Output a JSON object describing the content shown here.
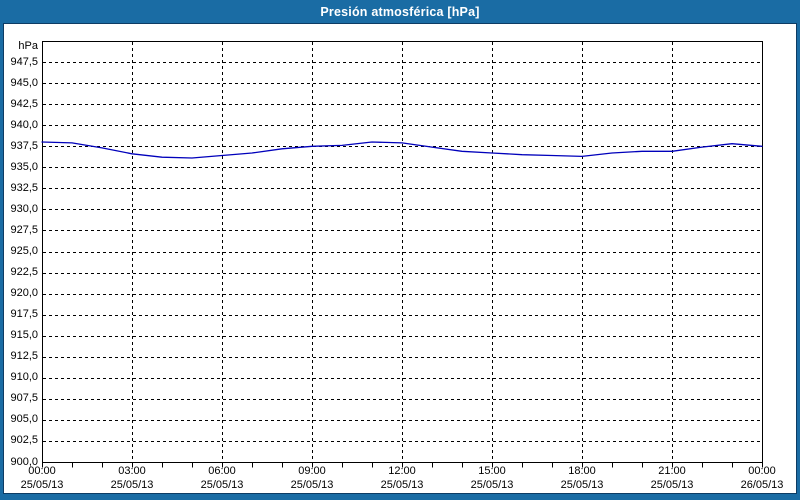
{
  "window": {
    "title": "Presión atmosférica [hPa]"
  },
  "colors": {
    "frame": "#1A6CA4",
    "frame_border": "#0D3C64",
    "titlebar_text": "#FFFFFF",
    "panel_bg": "#FFFFFF",
    "grid": "#000000",
    "axis": "#000000",
    "text": "#000000",
    "line": "#0000BB"
  },
  "chart_data": {
    "type": "line",
    "title": "Presión atmosférica [hPa]",
    "unit": "hPa",
    "ylim": [
      900,
      950
    ],
    "ytick_step": 2.5,
    "ytick_labels": [
      "947,5",
      "945,0",
      "942,5",
      "940,0",
      "937,5",
      "935,0",
      "932,5",
      "930,0",
      "927,5",
      "925,0",
      "922,5",
      "920,0",
      "917,5",
      "915,0",
      "912,5",
      "910,0",
      "907,5",
      "905,0",
      "902,5",
      "900,0"
    ],
    "xlim_hours": [
      0,
      24
    ],
    "x_major_step_hours": 3,
    "x_minor_step_hours": 1,
    "xticks": [
      {
        "time": "00:00",
        "date": "25/05/13"
      },
      {
        "time": "03:00",
        "date": "25/05/13"
      },
      {
        "time": "06:00",
        "date": "25/05/13"
      },
      {
        "time": "09:00",
        "date": "25/05/13"
      },
      {
        "time": "12:00",
        "date": "25/05/13"
      },
      {
        "time": "15:00",
        "date": "25/05/13"
      },
      {
        "time": "18:00",
        "date": "25/05/13"
      },
      {
        "time": "21:00",
        "date": "25/05/13"
      },
      {
        "time": "00:00",
        "date": "26/05/13"
      }
    ],
    "grid": true,
    "legend": false,
    "series": [
      {
        "name": "Presión atmosférica",
        "color": "#0000BB",
        "x_hours": [
          0,
          1,
          2,
          3,
          4,
          5,
          6,
          7,
          8,
          9,
          10,
          11,
          12,
          13,
          14,
          15,
          16,
          17,
          18,
          19,
          20,
          21,
          22,
          23,
          24
        ],
        "values": [
          938.0,
          937.9,
          937.3,
          936.6,
          936.2,
          936.1,
          936.4,
          936.7,
          937.2,
          937.5,
          937.6,
          938.0,
          937.9,
          937.4,
          936.9,
          936.7,
          936.5,
          936.4,
          936.3,
          936.7,
          936.9,
          936.9,
          937.4,
          937.8,
          937.5
        ]
      }
    ]
  }
}
